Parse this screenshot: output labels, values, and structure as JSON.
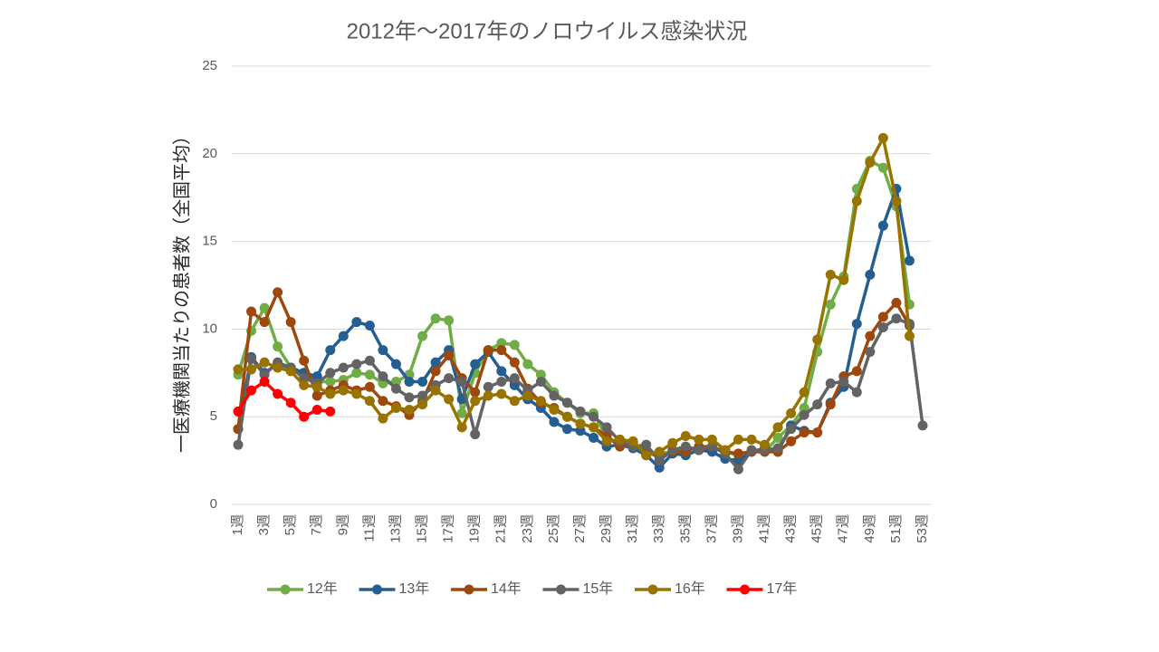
{
  "chart_data": {
    "type": "line",
    "title": "2012年〜2017年のノロウイルス感染状況",
    "y_label": "一医療機関当たりの患者数（全国平均）",
    "categories": [
      "1週",
      null,
      "3週",
      null,
      "5週",
      null,
      "7週",
      null,
      "9週",
      null,
      "11週",
      null,
      "13週",
      null,
      "15週",
      null,
      "17週",
      null,
      "19週",
      null,
      "21週",
      null,
      "23週",
      null,
      "25週",
      null,
      "27週",
      null,
      "29週",
      null,
      "31週",
      null,
      "33週",
      null,
      "35週",
      null,
      "37週",
      null,
      "39週",
      null,
      "41週",
      null,
      "43週",
      null,
      "45週",
      null,
      "47週",
      null,
      "49週",
      null,
      "51週",
      null,
      "53週"
    ],
    "ylim": [
      0,
      25
    ],
    "yticks": [
      0,
      5,
      10,
      15,
      20,
      25
    ],
    "grid": true,
    "legend": "bottom",
    "series": [
      {
        "name": "12年",
        "color": "#70ad47",
        "values": [
          7.4,
          9.9,
          11.2,
          9.0,
          7.8,
          7.5,
          7.0,
          7.0,
          7.1,
          7.5,
          7.4,
          6.9,
          7.0,
          7.4,
          9.6,
          10.6,
          10.5,
          5.2,
          7.5,
          8.8,
          9.2,
          9.1,
          8.0,
          7.4,
          6.4,
          5.8,
          5.2,
          5.2,
          3.8,
          3.5,
          3.5,
          3.0,
          2.9,
          3.0,
          3.2,
          3.2,
          3.2,
          3.0,
          2.8,
          3.0,
          3.0,
          3.8,
          4.5,
          5.5,
          8.7,
          11.4,
          13.0,
          18.0,
          19.6,
          19.2,
          17.0,
          11.4,
          null
        ]
      },
      {
        "name": "13年",
        "color": "#255e91",
        "values": [
          4.3,
          8.4,
          7.5,
          8.0,
          7.8,
          7.5,
          7.3,
          8.8,
          9.6,
          10.4,
          10.2,
          8.8,
          8.0,
          7.0,
          7.0,
          8.1,
          8.8,
          6.0,
          8.0,
          8.7,
          7.6,
          6.8,
          6.0,
          5.5,
          4.7,
          4.3,
          4.2,
          3.8,
          3.3,
          3.4,
          3.2,
          2.8,
          2.1,
          2.9,
          2.8,
          3.1,
          3.0,
          2.6,
          2.5,
          3.0,
          3.2,
          3.0,
          4.5,
          4.2,
          4.1,
          5.8,
          6.7,
          10.3,
          13.1,
          15.9,
          18.0,
          13.9,
          null
        ]
      },
      {
        "name": "14年",
        "color": "#9e480e",
        "values": [
          4.3,
          11.0,
          10.4,
          12.1,
          10.4,
          8.2,
          6.2,
          6.5,
          6.8,
          6.5,
          6.7,
          5.9,
          5.6,
          5.1,
          5.9,
          7.6,
          8.5,
          7.2,
          6.4,
          8.8,
          8.8,
          8.1,
          6.6,
          5.8,
          5.5,
          5.0,
          4.6,
          4.4,
          3.9,
          3.3,
          3.4,
          3.0,
          2.7,
          3.0,
          3.0,
          3.3,
          3.3,
          3.0,
          2.9,
          3.0,
          3.0,
          3.0,
          3.6,
          4.1,
          4.1,
          5.7,
          7.3,
          7.6,
          9.6,
          10.7,
          11.5,
          10.2,
          null
        ]
      },
      {
        "name": "15年",
        "color": "#636363",
        "values": [
          3.4,
          8.3,
          7.4,
          8.1,
          7.8,
          7.2,
          6.9,
          7.5,
          7.8,
          8.0,
          8.2,
          7.3,
          6.6,
          6.1,
          6.2,
          6.8,
          7.2,
          7.0,
          4.0,
          6.7,
          7.0,
          7.2,
          6.5,
          7.0,
          6.2,
          5.8,
          5.3,
          5.0,
          4.4,
          3.6,
          3.3,
          3.4,
          2.5,
          3.1,
          3.3,
          3.1,
          3.3,
          2.9,
          2.0,
          3.1,
          3.1,
          3.2,
          4.3,
          5.1,
          5.7,
          6.9,
          7.0,
          6.4,
          8.7,
          10.1,
          10.6,
          10.3,
          4.5
        ]
      },
      {
        "name": "16年",
        "color": "#997300",
        "values": [
          7.7,
          7.7,
          8.1,
          7.8,
          7.6,
          6.8,
          6.7,
          6.3,
          6.5,
          6.3,
          5.9,
          4.9,
          5.5,
          5.4,
          5.7,
          6.5,
          6.0,
          4.4,
          5.9,
          6.2,
          6.3,
          5.9,
          6.2,
          5.9,
          5.4,
          5.0,
          4.6,
          4.4,
          3.6,
          3.7,
          3.6,
          2.8,
          3.0,
          3.5,
          3.9,
          3.7,
          3.7,
          3.1,
          3.7,
          3.7,
          3.4,
          4.4,
          5.2,
          6.4,
          9.4,
          13.1,
          12.8,
          17.3,
          19.5,
          20.9,
          17.3,
          9.6,
          null
        ]
      },
      {
        "name": "17年",
        "color": "#ff0000",
        "values": [
          5.3,
          6.5,
          7.0,
          6.3,
          5.8,
          5.0,
          5.4,
          5.3,
          null,
          null,
          null,
          null,
          null,
          null,
          null,
          null,
          null,
          null,
          null,
          null,
          null,
          null,
          null,
          null,
          null,
          null,
          null,
          null,
          null,
          null,
          null,
          null,
          null,
          null,
          null,
          null,
          null,
          null,
          null,
          null,
          null,
          null,
          null,
          null,
          null,
          null,
          null,
          null,
          null,
          null,
          null,
          null,
          null
        ]
      }
    ]
  }
}
